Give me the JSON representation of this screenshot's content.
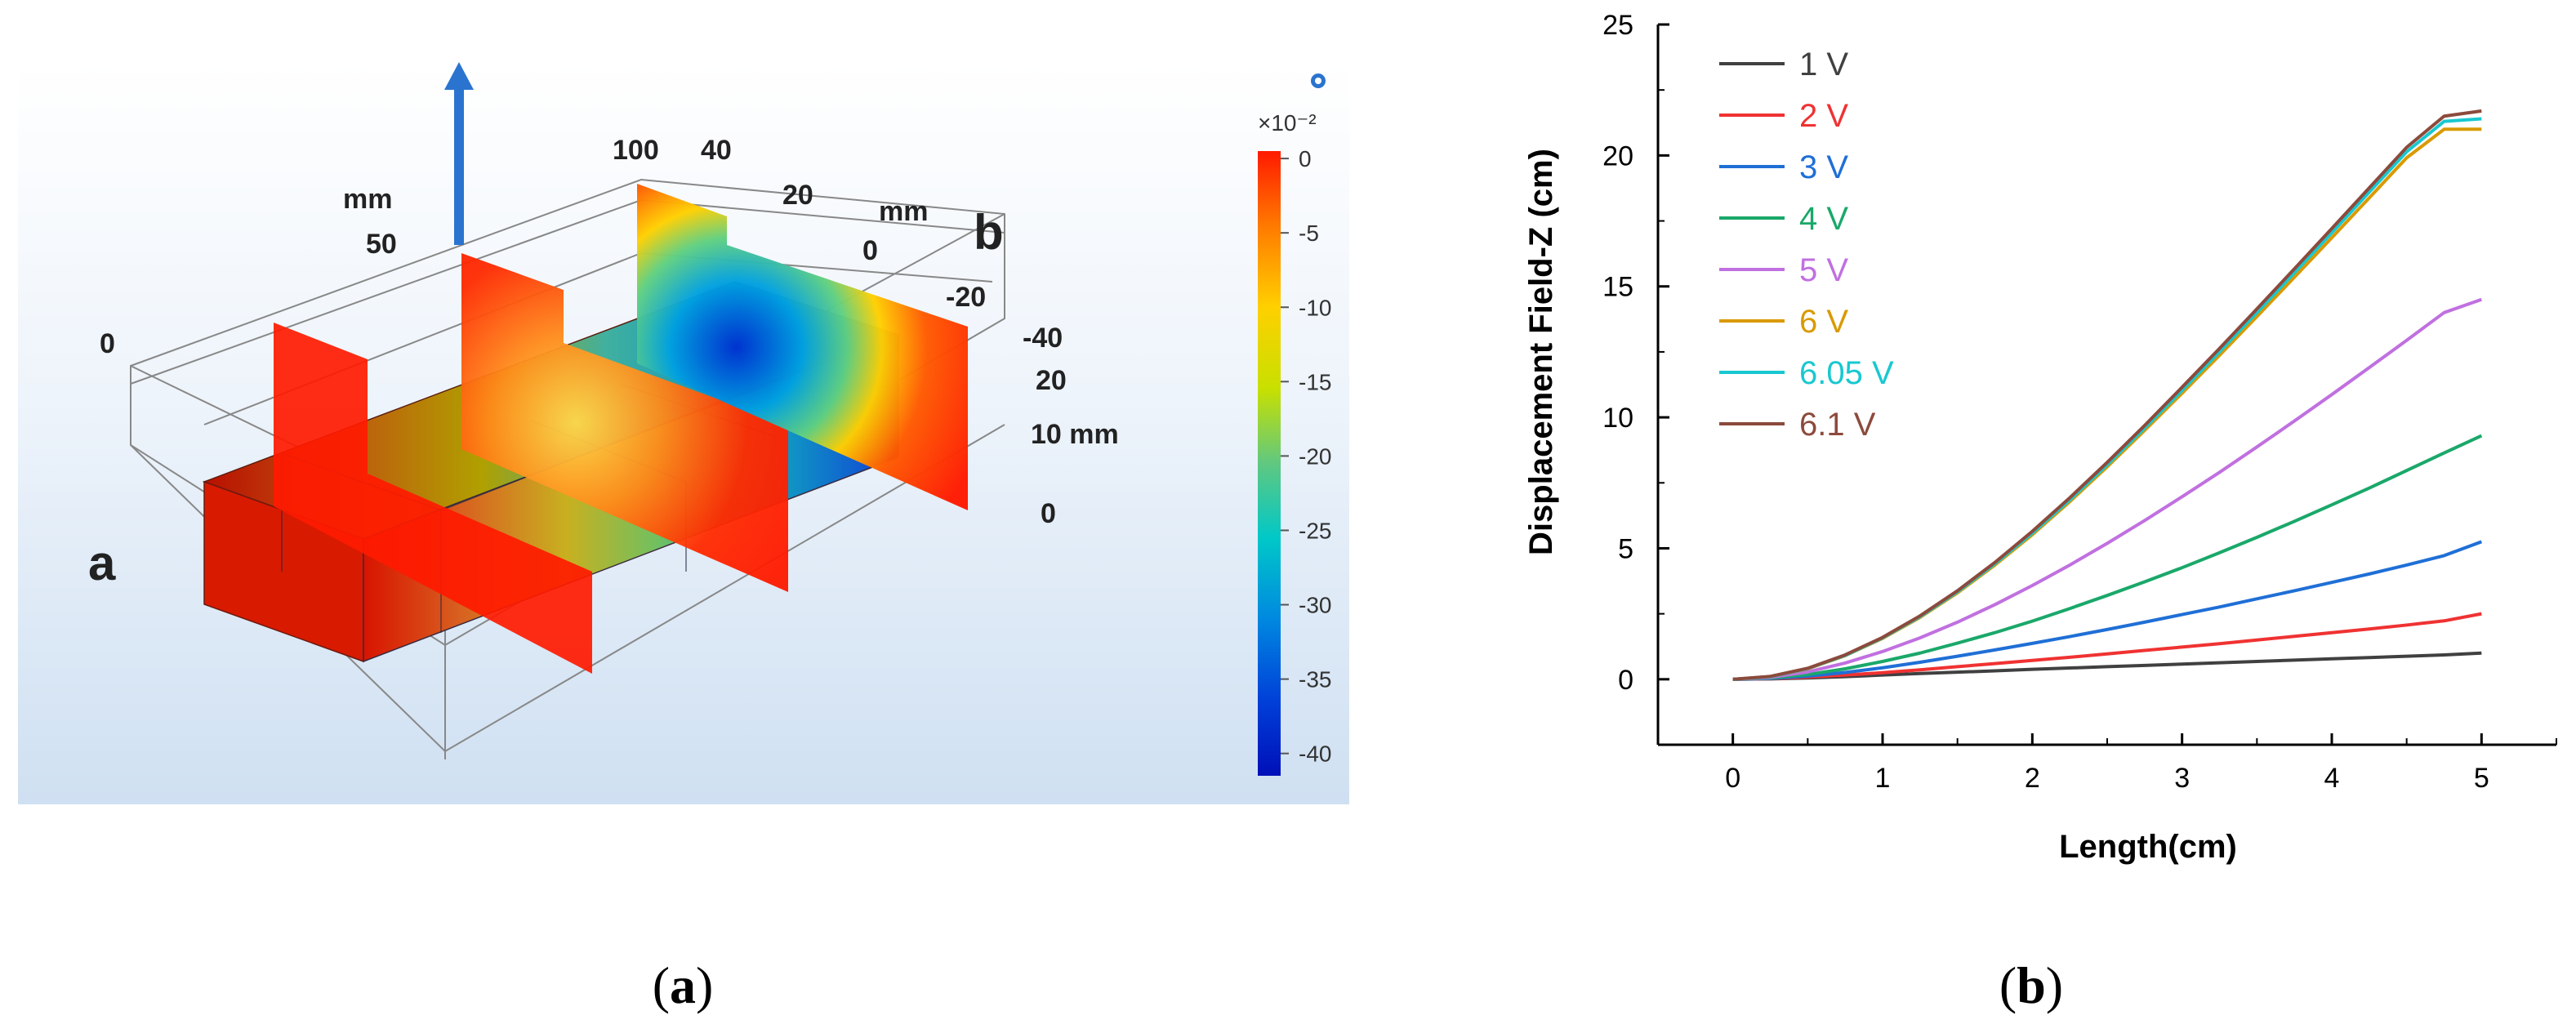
{
  "panel_a": {
    "caption_open": "(",
    "caption_letter": "a",
    "caption_close": ")",
    "labels": {
      "a": "a",
      "b": "b",
      "mm_top": "mm",
      "n50": "50",
      "n100": "100",
      "n0_left": "0",
      "n40_top": "40",
      "n20_top": "20",
      "mm_right": "mm",
      "n0_right": "0",
      "n_m20": "-20",
      "n_m40": "-40",
      "n20_side": "20",
      "n10mm": "10 mm",
      "n0_bottom": "0"
    },
    "colorbar": {
      "exponent": "×10⁻²",
      "ticks": [
        "0",
        "-5",
        "-10",
        "-15",
        "-20",
        "-25",
        "-30",
        "-35",
        "-40"
      ],
      "tick_values": [
        0,
        -5,
        -10,
        -15,
        -20,
        -25,
        -30,
        -35,
        -40
      ],
      "range": [
        -41.5,
        0.5
      ],
      "colors": [
        "#ff1a00",
        "#ff7a00",
        "#ffd000",
        "#c8e000",
        "#60c880",
        "#00c8c8",
        "#0088e0",
        "#0040d8",
        "#0010b8"
      ]
    },
    "arrow_color": "#2a74d0"
  },
  "panel_b": {
    "caption_open": "(",
    "caption_letter": "b",
    "caption_close": ")"
  },
  "chart_data": {
    "type": "line",
    "xlabel": "Length(cm)",
    "ylabel": "Displacement Field-Z (cm)",
    "xlim": [
      -0.5,
      5.5
    ],
    "ylim": [
      -2.5,
      25
    ],
    "xticks": [
      0,
      1,
      2,
      3,
      4,
      5
    ],
    "yticks": [
      0,
      5,
      10,
      15,
      20,
      25
    ],
    "grid": false,
    "legend_position": "top-left",
    "x": [
      0,
      0.25,
      0.5,
      0.75,
      1,
      1.25,
      1.5,
      1.75,
      2,
      2.25,
      2.5,
      2.75,
      3,
      3.25,
      3.5,
      3.75,
      4,
      4.25,
      4.5,
      4.75,
      5
    ],
    "series": [
      {
        "name": "1 V",
        "color": "#404040",
        "values": [
          0,
          0.015,
          0.05,
          0.1,
          0.16,
          0.22,
          0.27,
          0.32,
          0.38,
          0.43,
          0.48,
          0.53,
          0.58,
          0.63,
          0.68,
          0.73,
          0.78,
          0.83,
          0.88,
          0.93,
          1.0
        ]
      },
      {
        "name": "2 V",
        "color": "#f03232",
        "values": [
          0,
          0.02,
          0.08,
          0.16,
          0.25,
          0.36,
          0.48,
          0.6,
          0.72,
          0.84,
          0.97,
          1.1,
          1.23,
          1.36,
          1.5,
          1.64,
          1.78,
          1.92,
          2.07,
          2.23,
          2.5
        ]
      },
      {
        "name": "3 V",
        "color": "#1f6fd6",
        "values": [
          0,
          0.03,
          0.12,
          0.26,
          0.44,
          0.65,
          0.88,
          1.12,
          1.37,
          1.63,
          1.9,
          2.18,
          2.47,
          2.76,
          3.07,
          3.38,
          3.7,
          4.02,
          4.36,
          4.72,
          5.25
        ]
      },
      {
        "name": "4 V",
        "color": "#1aa86a",
        "values": [
          0,
          0.05,
          0.18,
          0.4,
          0.68,
          1.0,
          1.38,
          1.78,
          2.22,
          2.7,
          3.2,
          3.72,
          4.26,
          4.83,
          5.42,
          6.03,
          6.66,
          7.3,
          7.97,
          8.64,
          9.3
        ]
      },
      {
        "name": "5 V",
        "color": "#c070e0",
        "values": [
          0,
          0.07,
          0.28,
          0.62,
          1.06,
          1.58,
          2.18,
          2.85,
          3.58,
          4.36,
          5.19,
          6.06,
          6.97,
          7.9,
          8.87,
          9.86,
          10.87,
          11.9,
          12.94,
          14.0,
          14.5
        ]
      },
      {
        "name": "6 V",
        "color": "#d99a00",
        "values": [
          0,
          0.1,
          0.4,
          0.9,
          1.56,
          2.36,
          3.3,
          4.36,
          5.52,
          6.78,
          8.11,
          9.5,
          10.92,
          12.37,
          13.85,
          15.35,
          16.86,
          18.38,
          19.91,
          21.0,
          21.0
        ]
      },
      {
        "name": "6.05 V",
        "color": "#18c8d0",
        "values": [
          0,
          0.1,
          0.41,
          0.91,
          1.58,
          2.39,
          3.34,
          4.41,
          5.58,
          6.85,
          8.19,
          9.59,
          11.03,
          12.5,
          14.0,
          15.52,
          17.05,
          18.6,
          20.14,
          21.3,
          21.4
        ]
      },
      {
        "name": "6.1 V",
        "color": "#8c4a3c",
        "values": [
          0,
          0.11,
          0.42,
          0.93,
          1.6,
          2.42,
          3.38,
          4.46,
          5.65,
          6.93,
          8.28,
          9.69,
          11.15,
          12.63,
          14.14,
          15.67,
          17.21,
          18.76,
          20.31,
          21.5,
          21.7
        ]
      }
    ]
  }
}
